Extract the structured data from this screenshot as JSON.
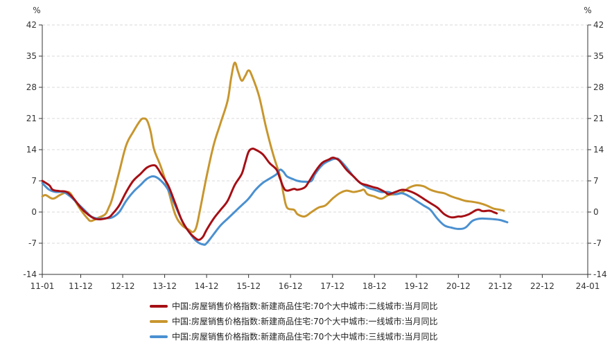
{
  "chart_data": {
    "type": "line",
    "title": "",
    "y_unit_left": "%",
    "y_unit_right": "%",
    "ylim": [
      -14,
      42
    ],
    "yticks": [
      -14,
      -7,
      0,
      7,
      14,
      21,
      28,
      35,
      42
    ],
    "ytick_labels": [
      "-14",
      "-7",
      "0",
      "7",
      "14",
      "21",
      "28",
      "35",
      "42"
    ],
    "x_start": "2011-01",
    "x_end": "2024-01",
    "x_tick_labels": [
      "11-01",
      "11-12",
      "12-12",
      "13-12",
      "14-12",
      "15-12",
      "16-12",
      "17-12",
      "18-12",
      "19-12",
      "20-12",
      "21-12",
      "22-12",
      "24-01"
    ],
    "x_tick_months": [
      0,
      11,
      23,
      35,
      47,
      59,
      71,
      83,
      95,
      107,
      119,
      131,
      143,
      156
    ],
    "grid": true,
    "legend_position": "bottom",
    "series": [
      {
        "name": "中国:房屋销售价格指数:新建商品住宅:70个大中城市:二线城市:当月同比",
        "color": "#a50f15",
        "points": [
          [
            0,
            7
          ],
          [
            2,
            6
          ],
          [
            3,
            5
          ],
          [
            5,
            4.7
          ],
          [
            7,
            4.5
          ],
          [
            9,
            3
          ],
          [
            11,
            1
          ],
          [
            13,
            -0.5
          ],
          [
            15,
            -1.5
          ],
          [
            17,
            -1.6
          ],
          [
            19,
            -1.2
          ],
          [
            20,
            -0.5
          ],
          [
            22,
            1.5
          ],
          [
            24,
            4.5
          ],
          [
            26,
            7
          ],
          [
            28,
            8.5
          ],
          [
            30,
            10
          ],
          [
            32,
            10.5
          ],
          [
            33,
            9.8
          ],
          [
            34,
            8.5
          ],
          [
            36,
            6
          ],
          [
            38,
            2
          ],
          [
            40,
            -2
          ],
          [
            42,
            -4.5
          ],
          [
            44,
            -6
          ],
          [
            45,
            -6.2
          ],
          [
            46,
            -5.5
          ],
          [
            47,
            -4
          ],
          [
            49,
            -1.5
          ],
          [
            51,
            0.5
          ],
          [
            53,
            2.5
          ],
          [
            55,
            6
          ],
          [
            57,
            8.5
          ],
          [
            58,
            11
          ],
          [
            59,
            13.5
          ],
          [
            60,
            14.2
          ],
          [
            61,
            14
          ],
          [
            63,
            13
          ],
          [
            65,
            11
          ],
          [
            67,
            9.5
          ],
          [
            68,
            7.5
          ],
          [
            69,
            5.5
          ],
          [
            70,
            4.8
          ],
          [
            72,
            5.2
          ],
          [
            73,
            5
          ],
          [
            75,
            5.5
          ],
          [
            76,
            6.5
          ],
          [
            78,
            9
          ],
          [
            80,
            11
          ],
          [
            82,
            11.8
          ],
          [
            83,
            12.2
          ],
          [
            84,
            12
          ],
          [
            85,
            11.5
          ],
          [
            87,
            9.5
          ],
          [
            89,
            8
          ],
          [
            91,
            6.5
          ],
          [
            93,
            6
          ],
          [
            95,
            5.5
          ],
          [
            96,
            5.3
          ],
          [
            98,
            4.5
          ],
          [
            99,
            4
          ],
          [
            101,
            4.5
          ],
          [
            103,
            5
          ],
          [
            105,
            4.7
          ],
          [
            107,
            4
          ],
          [
            109,
            3
          ],
          [
            111,
            2
          ],
          [
            113,
            1
          ],
          [
            115,
            -0.5
          ],
          [
            117,
            -1.2
          ],
          [
            119,
            -1
          ],
          [
            120,
            -1
          ],
          [
            122,
            -0.5
          ],
          [
            124,
            0.4
          ],
          [
            125,
            0.5
          ],
          [
            126,
            0.2
          ],
          [
            128,
            0.3
          ],
          [
            129,
            0
          ],
          [
            130,
            -0.3
          ]
        ]
      },
      {
        "name": "中国:房屋销售价格指数:新建商品住宅:70个大中城市:一线城市:当月同比",
        "color": "#c8962e",
        "points": [
          [
            0,
            3.5
          ],
          [
            1,
            3.8
          ],
          [
            3,
            3
          ],
          [
            5,
            3.8
          ],
          [
            7,
            4.5
          ],
          [
            8,
            4.2
          ],
          [
            9,
            3
          ],
          [
            11,
            0.5
          ],
          [
            13,
            -1.5
          ],
          [
            14,
            -2
          ],
          [
            16,
            -1.3
          ],
          [
            18,
            -0.5
          ],
          [
            19,
            1
          ],
          [
            20,
            3
          ],
          [
            22,
            9
          ],
          [
            24,
            15
          ],
          [
            26,
            18
          ],
          [
            28,
            20.5
          ],
          [
            29,
            21
          ],
          [
            30,
            20.5
          ],
          [
            31,
            18
          ],
          [
            32,
            14
          ],
          [
            34,
            10
          ],
          [
            36,
            5
          ],
          [
            38,
            -0.5
          ],
          [
            40,
            -3
          ],
          [
            42,
            -4
          ],
          [
            43,
            -4.5
          ],
          [
            44,
            -3.5
          ],
          [
            45,
            0
          ],
          [
            47,
            8
          ],
          [
            49,
            15
          ],
          [
            51,
            20
          ],
          [
            53,
            25
          ],
          [
            54,
            30
          ],
          [
            55,
            33.5
          ],
          [
            56,
            31.5
          ],
          [
            57,
            29.5
          ],
          [
            58,
            30.5
          ],
          [
            59,
            31.8
          ],
          [
            60,
            30.5
          ],
          [
            62,
            26
          ],
          [
            64,
            19
          ],
          [
            66,
            13
          ],
          [
            68,
            8
          ],
          [
            69,
            4
          ],
          [
            70,
            1
          ],
          [
            72,
            0.5
          ],
          [
            73,
            -0.5
          ],
          [
            75,
            -1
          ],
          [
            77,
            0
          ],
          [
            79,
            1
          ],
          [
            81,
            1.5
          ],
          [
            83,
            3
          ],
          [
            85,
            4.2
          ],
          [
            87,
            4.8
          ],
          [
            89,
            4.5
          ],
          [
            91,
            4.8
          ],
          [
            92,
            5
          ],
          [
            93,
            4
          ],
          [
            95,
            3.5
          ],
          [
            97,
            3
          ],
          [
            99,
            3.8
          ],
          [
            101,
            4
          ],
          [
            103,
            4.5
          ],
          [
            105,
            5.5
          ],
          [
            107,
            6
          ],
          [
            109,
            5.8
          ],
          [
            111,
            5
          ],
          [
            113,
            4.5
          ],
          [
            115,
            4.2
          ],
          [
            117,
            3.5
          ],
          [
            119,
            3
          ],
          [
            121,
            2.5
          ],
          [
            123,
            2.3
          ],
          [
            125,
            2
          ],
          [
            127,
            1.5
          ],
          [
            129,
            0.8
          ],
          [
            131,
            0.5
          ],
          [
            132,
            0.3
          ]
        ]
      },
      {
        "name": "中国:房屋销售价格指数:新建商品住宅:70个大中城市:三线城市:当月同比",
        "color": "#4a90d0",
        "points": [
          [
            0,
            6.5
          ],
          [
            2,
            5
          ],
          [
            4,
            4.5
          ],
          [
            6,
            4.5
          ],
          [
            8,
            3.5
          ],
          [
            10,
            2
          ],
          [
            12,
            0.5
          ],
          [
            14,
            -1
          ],
          [
            16,
            -1.5
          ],
          [
            18,
            -1.4
          ],
          [
            20,
            -1.2
          ],
          [
            22,
            0
          ],
          [
            24,
            2.5
          ],
          [
            26,
            4.5
          ],
          [
            28,
            6
          ],
          [
            30,
            7.5
          ],
          [
            32,
            8
          ],
          [
            34,
            7
          ],
          [
            36,
            5
          ],
          [
            38,
            1.5
          ],
          [
            40,
            -2
          ],
          [
            42,
            -4.5
          ],
          [
            44,
            -6.5
          ],
          [
            46,
            -7.3
          ],
          [
            47,
            -7
          ],
          [
            49,
            -5
          ],
          [
            51,
            -3
          ],
          [
            53,
            -1.5
          ],
          [
            55,
            0
          ],
          [
            57,
            1.5
          ],
          [
            59,
            3
          ],
          [
            61,
            5
          ],
          [
            63,
            6.5
          ],
          [
            65,
            7.5
          ],
          [
            67,
            8.5
          ],
          [
            68,
            9.5
          ],
          [
            69,
            9
          ],
          [
            70,
            8
          ],
          [
            72,
            7.3
          ],
          [
            73,
            7
          ],
          [
            75,
            6.8
          ],
          [
            77,
            7
          ],
          [
            78,
            8.5
          ],
          [
            80,
            10.5
          ],
          [
            82,
            11.5
          ],
          [
            84,
            12
          ],
          [
            85,
            11.7
          ],
          [
            87,
            10
          ],
          [
            89,
            8
          ],
          [
            91,
            6.5
          ],
          [
            93,
            5.5
          ],
          [
            95,
            5
          ],
          [
            97,
            4.5
          ],
          [
            99,
            4.5
          ],
          [
            101,
            4
          ],
          [
            103,
            4.2
          ],
          [
            105,
            3.5
          ],
          [
            107,
            2.5
          ],
          [
            109,
            1.5
          ],
          [
            111,
            0.5
          ],
          [
            113,
            -1.5
          ],
          [
            115,
            -3
          ],
          [
            117,
            -3.5
          ],
          [
            119,
            -3.8
          ],
          [
            121,
            -3.5
          ],
          [
            123,
            -2
          ],
          [
            125,
            -1.5
          ],
          [
            127,
            -1.5
          ],
          [
            129,
            -1.6
          ],
          [
            131,
            -1.8
          ],
          [
            133,
            -2.3
          ]
        ]
      }
    ]
  }
}
